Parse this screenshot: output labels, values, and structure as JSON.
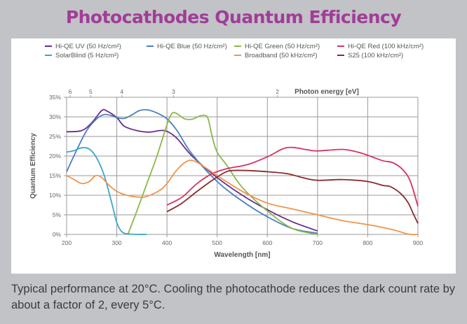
{
  "title": "Photocathodes Quantum Efficiency",
  "caption": "Typical performance at 20°C. Cooling the photocathode reduces the dark count rate by about a factor of 2, every 5°C.",
  "chart_data": {
    "type": "line",
    "title": "Photocathodes Quantum Efficiency",
    "xlabel": "Wavelength [nm]",
    "ylabel": "Quantum Efficiency",
    "x2label": "Photon energy [eV]",
    "xlim": [
      200,
      900
    ],
    "ylim": [
      0,
      35
    ],
    "grid": true,
    "legend_position": "top",
    "x_ticks": [
      200,
      300,
      400,
      500,
      600,
      700,
      800,
      900
    ],
    "y_ticks": [
      0,
      5,
      10,
      15,
      20,
      25,
      30,
      35
    ],
    "y_tick_labels": [
      "0%",
      "5%",
      "10%",
      "15%",
      "20%",
      "25%",
      "30%",
      "35%"
    ],
    "x2_ticks": [
      {
        "label": "6",
        "wavelength": 207
      },
      {
        "label": "5",
        "wavelength": 248
      },
      {
        "label": "4",
        "wavelength": 310
      },
      {
        "label": "3",
        "wavelength": 413
      },
      {
        "label": "2",
        "wavelength": 620
      }
    ],
    "series": [
      {
        "name": "Hi-QE UV (50 Hz/cm²)",
        "color": "#6a2c8e",
        "points": [
          [
            200,
            26.2
          ],
          [
            230,
            26.5
          ],
          [
            250,
            28.5
          ],
          [
            270,
            31.6
          ],
          [
            280,
            31.5
          ],
          [
            300,
            29.8
          ],
          [
            315,
            27.6
          ],
          [
            340,
            26.5
          ],
          [
            365,
            26.1
          ],
          [
            385,
            26.5
          ],
          [
            400,
            26.3
          ],
          [
            420,
            24.5
          ],
          [
            450,
            20.0
          ],
          [
            500,
            14.5
          ],
          [
            550,
            10.0
          ],
          [
            600,
            6.3
          ],
          [
            650,
            3.2
          ],
          [
            700,
            0.9
          ]
        ]
      },
      {
        "name": "Hi-QE Blue (50 Hz/cm²)",
        "color": "#4a7fc1",
        "points": [
          [
            200,
            16.0
          ],
          [
            220,
            21.5
          ],
          [
            240,
            26.5
          ],
          [
            260,
            29.5
          ],
          [
            275,
            30.6
          ],
          [
            290,
            30.3
          ],
          [
            300,
            29.8
          ],
          [
            315,
            29.6
          ],
          [
            330,
            30.5
          ],
          [
            345,
            31.6
          ],
          [
            360,
            31.8
          ],
          [
            380,
            31.0
          ],
          [
            400,
            29.5
          ],
          [
            420,
            26.5
          ],
          [
            450,
            20.5
          ],
          [
            500,
            13.5
          ],
          [
            550,
            8.5
          ],
          [
            600,
            4.5
          ],
          [
            650,
            1.5
          ],
          [
            700,
            0.3
          ]
        ]
      },
      {
        "name": "Hi-QE Green (50 Hz/cm²)",
        "color": "#8ab84a",
        "points": [
          [
            322,
            0
          ],
          [
            340,
            6
          ],
          [
            360,
            13
          ],
          [
            380,
            20
          ],
          [
            400,
            28
          ],
          [
            410,
            30.9
          ],
          [
            420,
            30.8
          ],
          [
            435,
            29.5
          ],
          [
            450,
            29.4
          ],
          [
            465,
            30.2
          ],
          [
            475,
            30.4
          ],
          [
            482,
            29.5
          ],
          [
            490,
            25.0
          ],
          [
            500,
            21.0
          ],
          [
            520,
            17.5
          ],
          [
            550,
            12.0
          ],
          [
            600,
            6.0
          ],
          [
            650,
            1.5
          ],
          [
            700,
            0
          ]
        ]
      },
      {
        "name": "Hi-QE Red (100 kHz/cm²)",
        "color": "#d6335e",
        "points": [
          [
            400,
            7.5
          ],
          [
            430,
            9.5
          ],
          [
            460,
            13.0
          ],
          [
            490,
            15.5
          ],
          [
            520,
            16.8
          ],
          [
            560,
            17.8
          ],
          [
            600,
            19.8
          ],
          [
            630,
            21.8
          ],
          [
            650,
            22.2
          ],
          [
            680,
            21.6
          ],
          [
            700,
            21.3
          ],
          [
            750,
            21.7
          ],
          [
            780,
            21.0
          ],
          [
            800,
            20.2
          ],
          [
            830,
            18.8
          ],
          [
            850,
            18.3
          ],
          [
            870,
            16.5
          ],
          [
            885,
            13.5
          ],
          [
            900,
            7.2
          ]
        ]
      },
      {
        "name": "SolarBlind (5 Hz/cm²)",
        "color": "#3aa7c9",
        "points": [
          [
            200,
            21.0
          ],
          [
            215,
            21.4
          ],
          [
            230,
            22.1
          ],
          [
            245,
            21.8
          ],
          [
            260,
            19.5
          ],
          [
            275,
            15.0
          ],
          [
            290,
            8.0
          ],
          [
            300,
            3.0
          ],
          [
            310,
            0.7
          ],
          [
            325,
            0.1
          ],
          [
            360,
            0.0
          ]
        ]
      },
      {
        "name": "Broadband (50 kHz/cm²)",
        "color": "#f0944a",
        "points": [
          [
            200,
            15.0
          ],
          [
            215,
            14.0
          ],
          [
            230,
            13.0
          ],
          [
            245,
            13.5
          ],
          [
            258,
            15.0
          ],
          [
            270,
            14.5
          ],
          [
            285,
            12.5
          ],
          [
            300,
            11.0
          ],
          [
            320,
            10.0
          ],
          [
            345,
            9.5
          ],
          [
            360,
            9.7
          ],
          [
            385,
            11.2
          ],
          [
            400,
            13.0
          ],
          [
            420,
            16.5
          ],
          [
            440,
            18.7
          ],
          [
            455,
            18.7
          ],
          [
            475,
            17.2
          ],
          [
            500,
            15.0
          ],
          [
            550,
            11.0
          ],
          [
            600,
            8.0
          ],
          [
            650,
            6.5
          ],
          [
            700,
            5.0
          ],
          [
            750,
            3.5
          ],
          [
            800,
            2.5
          ],
          [
            850,
            1.2
          ],
          [
            880,
            0.1
          ],
          [
            900,
            0.0
          ]
        ]
      },
      {
        "name": "S25 (100 kHz/cm²)",
        "color": "#8b2a2f",
        "points": [
          [
            400,
            5.8
          ],
          [
            430,
            8.0
          ],
          [
            460,
            11.0
          ],
          [
            490,
            13.8
          ],
          [
            515,
            15.8
          ],
          [
            530,
            16.3
          ],
          [
            560,
            16.3
          ],
          [
            600,
            16.0
          ],
          [
            640,
            15.5
          ],
          [
            670,
            14.5
          ],
          [
            700,
            13.8
          ],
          [
            750,
            14.0
          ],
          [
            800,
            13.5
          ],
          [
            830,
            12.5
          ],
          [
            845,
            12.2
          ],
          [
            865,
            10.5
          ],
          [
            880,
            8.2
          ],
          [
            890,
            5.5
          ],
          [
            900,
            2.8
          ]
        ]
      }
    ]
  }
}
